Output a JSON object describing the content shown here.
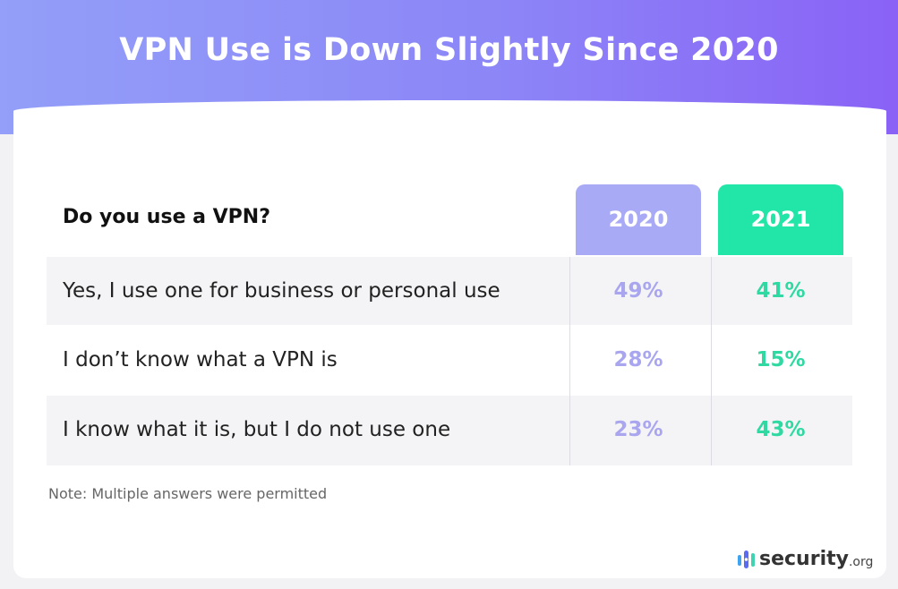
{
  "title": "VPN Use is Down Slightly Since 2020",
  "colors": {
    "year_2020": "#a9aaf5",
    "year_2021": "#21e6a7",
    "text_2020": "#a9a6ef",
    "text_2021": "#2fd9a1"
  },
  "chart_data": {
    "type": "table",
    "title": "VPN Use is Down Slightly Since 2020",
    "question": "Do you use a VPN?",
    "columns": [
      "2020",
      "2021"
    ],
    "rows": [
      {
        "label": "Yes, I use one for business or personal use",
        "values": [
          "49%",
          "41%"
        ]
      },
      {
        "label": "I don’t know what a VPN is",
        "values": [
          "28%",
          "15%"
        ]
      },
      {
        "label": "I know what it is, but I do not use one",
        "values": [
          "23%",
          "43%"
        ]
      }
    ]
  },
  "note": "Note: Multiple answers were permitted",
  "logo": {
    "name": "security",
    "suffix": ".org"
  }
}
